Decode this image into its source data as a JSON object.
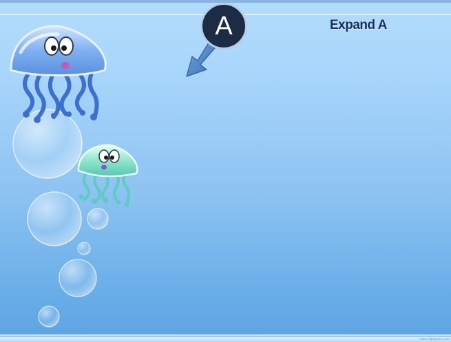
{
  "slide": {
    "title": "Expand A",
    "badge_label": "A",
    "footer": "www.clipsgone.com"
  },
  "icons": [
    "arrow-icon",
    "jellyfish-large",
    "jellyfish-small",
    "bubbles"
  ],
  "colors": {
    "background_top": "#b3dcfb",
    "background_bottom": "#5da4e3",
    "title": "#14305c",
    "badge": "#1d2c45",
    "arrow": "#4a86c8"
  }
}
